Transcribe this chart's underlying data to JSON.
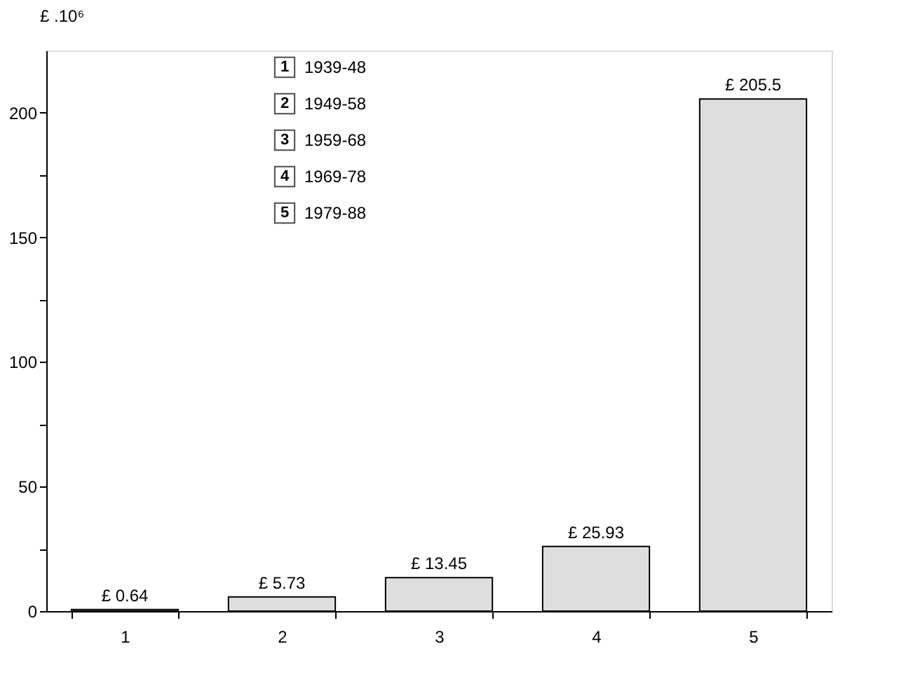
{
  "chart_data": {
    "type": "bar",
    "ylabel": "£ .10⁶",
    "categories": [
      "1",
      "2",
      "3",
      "4",
      "5"
    ],
    "values": [
      0.64,
      5.73,
      13.45,
      25.93,
      205.5
    ],
    "value_labels": [
      "£ 0.64",
      "£ 5.73",
      "£ 13.45",
      "£ 25.93",
      "£ 205.5"
    ],
    "color": "#dedede",
    "ylim": [
      0,
      225
    ],
    "yticks": [
      0,
      {
        "value": 25,
        "label": null
      },
      50,
      {
        "value": 75,
        "label": null
      },
      100,
      {
        "value": 125,
        "label": null
      },
      150,
      {
        "value": 175,
        "label": null
      },
      200
    ],
    "annotations": [
      "1939-48",
      "1949-58",
      "1959-68",
      "1969-78",
      "1979-88"
    ],
    "grid": false
  }
}
